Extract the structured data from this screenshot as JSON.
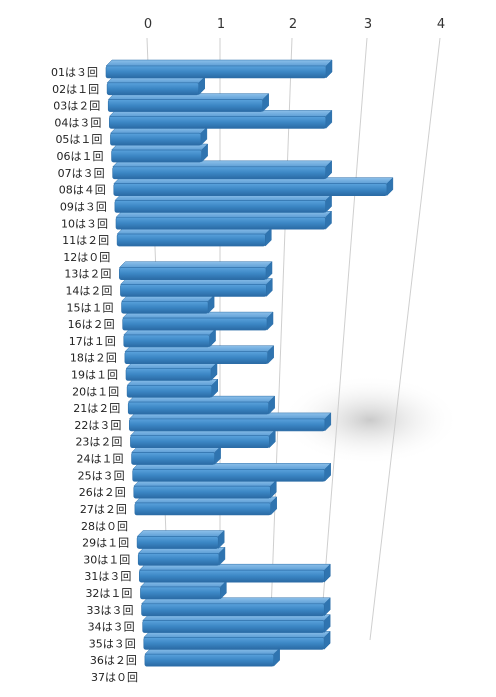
{
  "chart_data": {
    "type": "bar",
    "orientation": "horizontal",
    "style": "3d-perspective",
    "bar_color": "#3b86c4",
    "categories": [
      "01は３回",
      "02は１回",
      "03は２回",
      "04は３回",
      "05は１回",
      "06は１回",
      "07は３回",
      "08は４回",
      "09は３回",
      "10は３回",
      "11は２回",
      "12は０回",
      "13は２回",
      "14は２回",
      "15は１回",
      "16は２回",
      "17は１回",
      "18は２回",
      "19は１回",
      "20は１回",
      "21は２回",
      "22は３回",
      "23は２回",
      "24は１回",
      "25は３回",
      "26は２回",
      "27は２回",
      "28は０回",
      "29は１回",
      "30は１回",
      "31は３回",
      "32は１回",
      "33は３回",
      "34は３回",
      "35は３回",
      "36は２回",
      "37は０回"
    ],
    "values": [
      3,
      1,
      2,
      3,
      1,
      1,
      3,
      4,
      3,
      3,
      2,
      0,
      2,
      2,
      1,
      2,
      1,
      2,
      1,
      1,
      2,
      3,
      2,
      1,
      3,
      2,
      2,
      0,
      1,
      1,
      3,
      1,
      3,
      3,
      3,
      2,
      0
    ],
    "x_ticks": [
      "0",
      "1",
      "2",
      "3",
      "4"
    ],
    "xlim": [
      0,
      4
    ],
    "grid": true
  }
}
